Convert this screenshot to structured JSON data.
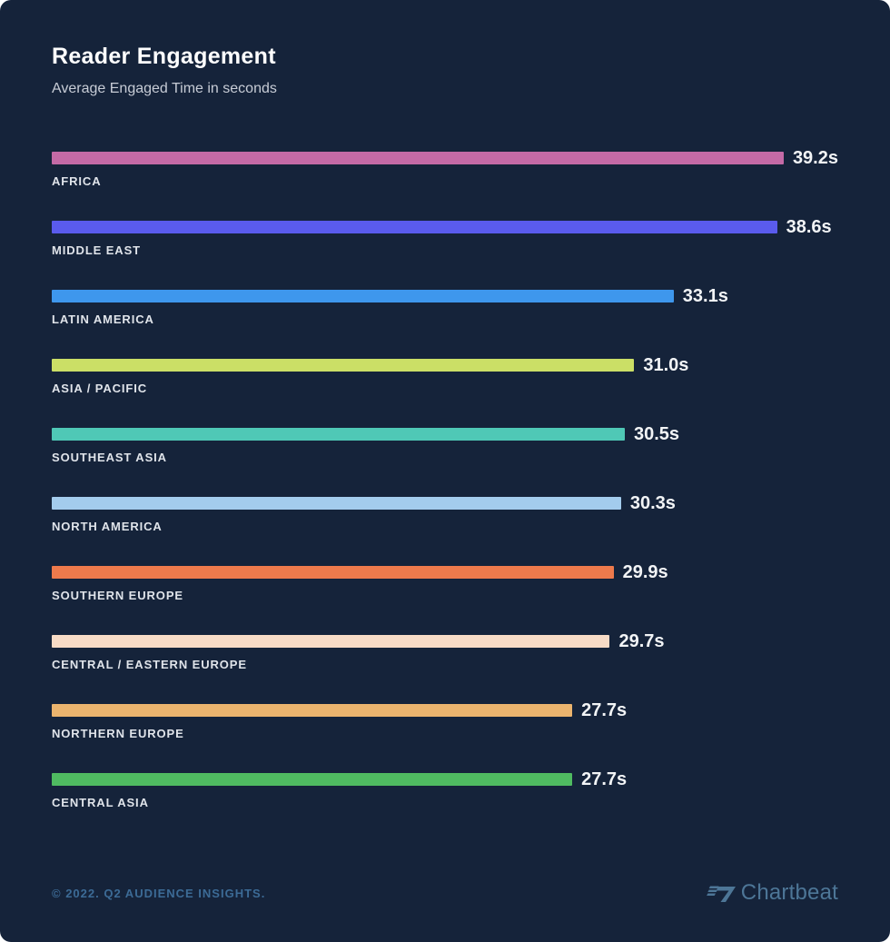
{
  "page": {
    "background_color": "#15233a"
  },
  "header": {
    "title": "Reader Engagement",
    "subtitle": "Average Engaged Time in seconds"
  },
  "chart_data": {
    "type": "bar",
    "orientation": "horizontal",
    "title": "Reader Engagement",
    "subtitle": "Average Engaged Time in seconds",
    "unit": "seconds",
    "xlim": [
      0,
      39.2
    ],
    "grid": false,
    "legend": false,
    "categories": [
      "AFRICA",
      "MIDDLE EAST",
      "LATIN AMERICA",
      "ASIA / PACIFIC",
      "SOUTHEAST ASIA",
      "NORTH AMERICA",
      "SOUTHERN EUROPE",
      "CENTRAL / EASTERN EUROPE",
      "NORTHERN EUROPE",
      "CENTRAL ASIA"
    ],
    "values": [
      39.2,
      38.6,
      33.1,
      31.0,
      30.5,
      30.3,
      29.9,
      29.7,
      27.7,
      27.7
    ],
    "value_labels": [
      "39.2s",
      "38.6s",
      "33.1s",
      "31.0s",
      "30.5s",
      "30.3s",
      "29.9s",
      "29.7s",
      "27.7s",
      "27.7s"
    ],
    "bar_colors": [
      "#c46aa6",
      "#5a5bed",
      "#3e97ed",
      "#cbdf66",
      "#4fc8b6",
      "#a3cced",
      "#ee7a4c",
      "#f7dbc6",
      "#ebb46e",
      "#4fbb61"
    ]
  },
  "footer": {
    "copyright": "© 2022. Q2 AUDIENCE INSIGHTS.",
    "brand": "Chartbeat",
    "brand_icon": "chartbeat-wing-icon",
    "text_color": "#3c6b96",
    "brand_color": "#4d7697"
  }
}
